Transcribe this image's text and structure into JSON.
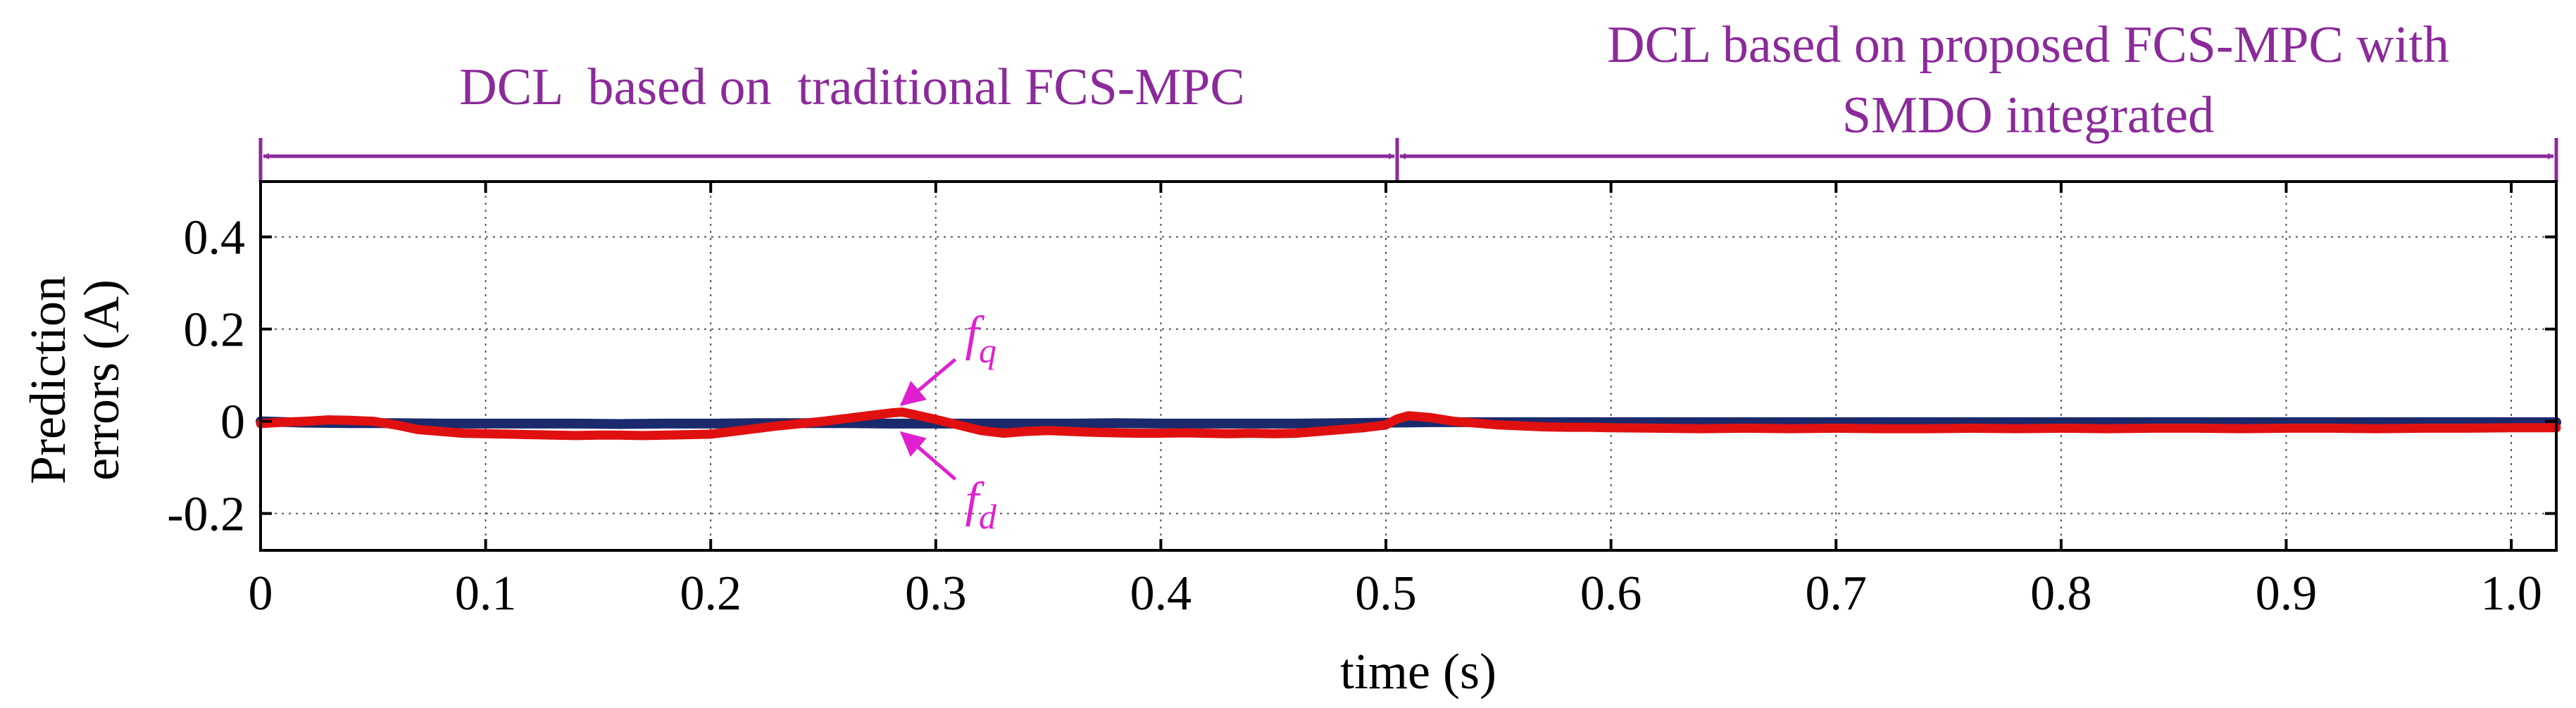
{
  "chart_data": {
    "type": "line",
    "xlabel": "time (s)",
    "ylabel_line1": "Prediction",
    "ylabel_line2": "errors (A)",
    "xlim": [
      0,
      1.02
    ],
    "ylim": [
      -0.28,
      0.52
    ],
    "x_ticks": [
      0,
      0.1,
      0.2,
      0.3,
      0.4,
      0.5,
      0.6,
      0.7,
      0.8,
      0.9,
      1.0
    ],
    "x_tick_labels": [
      "0",
      "0.1",
      "0.2",
      "0.3",
      "0.4",
      "0.5",
      "0.6",
      "0.7",
      "0.8",
      "0.9",
      "1.0"
    ],
    "y_ticks": [
      -0.2,
      0,
      0.2,
      0.4
    ],
    "y_tick_labels": [
      "-0.2",
      "0",
      "0.2",
      "0.4"
    ],
    "grid": true,
    "regions": [
      {
        "label": "DCL  based on  traditional FCS-MPC",
        "x_start": 0,
        "x_end": 0.505
      },
      {
        "label_line1": "DCL based on proposed FCS-MPC with",
        "label_line2": "SMDO integrated",
        "x_start": 0.505,
        "x_end": 1.02
      }
    ],
    "annotations": [
      {
        "symbol": "f",
        "subscript": "q",
        "x": 0.283,
        "y": 0.015
      },
      {
        "symbol": "f",
        "subscript": "d",
        "x": 0.283,
        "y": -0.01
      }
    ],
    "series": [
      {
        "name": "f_d",
        "color": "#1a2a6c",
        "x": [
          0,
          0.02,
          0.04,
          0.06,
          0.08,
          0.1,
          0.12,
          0.14,
          0.16,
          0.18,
          0.2,
          0.22,
          0.24,
          0.26,
          0.28,
          0.3,
          0.32,
          0.34,
          0.36,
          0.38,
          0.4,
          0.42,
          0.44,
          0.46,
          0.48,
          0.5,
          0.52,
          0.54,
          0.56,
          0.58,
          0.6,
          0.62,
          0.64,
          0.66,
          0.68,
          0.7,
          0.72,
          0.74,
          0.76,
          0.78,
          0.8,
          0.82,
          0.84,
          0.86,
          0.88,
          0.9,
          0.92,
          0.94,
          0.96,
          0.98,
          1.0,
          1.02
        ],
        "y": [
          0,
          -0.003,
          -0.004,
          -0.004,
          -0.005,
          -0.005,
          -0.005,
          -0.005,
          -0.006,
          -0.005,
          -0.005,
          -0.004,
          -0.004,
          -0.004,
          -0.005,
          -0.005,
          -0.005,
          -0.005,
          -0.005,
          -0.004,
          -0.005,
          -0.005,
          -0.005,
          -0.005,
          -0.004,
          -0.003,
          -0.002,
          -0.002,
          -0.002,
          -0.002,
          -0.002,
          -0.002,
          -0.002,
          -0.002,
          -0.002,
          -0.002,
          -0.002,
          -0.002,
          -0.002,
          -0.002,
          -0.002,
          -0.002,
          -0.002,
          -0.002,
          -0.002,
          -0.002,
          -0.002,
          -0.002,
          -0.002,
          -0.002,
          -0.002,
          -0.002
        ]
      },
      {
        "name": "f_q",
        "color": "#e01010",
        "x": [
          0,
          0.01,
          0.02,
          0.03,
          0.04,
          0.05,
          0.06,
          0.07,
          0.08,
          0.09,
          0.1,
          0.11,
          0.12,
          0.13,
          0.14,
          0.15,
          0.16,
          0.17,
          0.18,
          0.19,
          0.2,
          0.21,
          0.22,
          0.23,
          0.24,
          0.25,
          0.26,
          0.27,
          0.28,
          0.285,
          0.29,
          0.3,
          0.31,
          0.32,
          0.33,
          0.34,
          0.35,
          0.36,
          0.37,
          0.38,
          0.39,
          0.4,
          0.41,
          0.42,
          0.43,
          0.44,
          0.45,
          0.46,
          0.47,
          0.48,
          0.49,
          0.5,
          0.505,
          0.51,
          0.52,
          0.53,
          0.54,
          0.55,
          0.56,
          0.57,
          0.58,
          0.59,
          0.6,
          0.62,
          0.64,
          0.66,
          0.68,
          0.7,
          0.72,
          0.74,
          0.76,
          0.78,
          0.8,
          0.82,
          0.84,
          0.86,
          0.88,
          0.9,
          0.92,
          0.94,
          0.96,
          0.98,
          1.0,
          1.02
        ],
        "y": [
          -0.005,
          -0.002,
          0.0,
          0.003,
          0.002,
          0.0,
          -0.008,
          -0.018,
          -0.022,
          -0.026,
          -0.027,
          -0.028,
          -0.029,
          -0.03,
          -0.031,
          -0.03,
          -0.03,
          -0.031,
          -0.03,
          -0.029,
          -0.028,
          -0.022,
          -0.016,
          -0.01,
          -0.005,
          0.0,
          0.006,
          0.012,
          0.018,
          0.02,
          0.015,
          0.004,
          -0.008,
          -0.02,
          -0.026,
          -0.022,
          -0.02,
          -0.022,
          -0.024,
          -0.025,
          -0.026,
          -0.026,
          -0.025,
          -0.026,
          -0.027,
          -0.026,
          -0.027,
          -0.026,
          -0.022,
          -0.018,
          -0.014,
          -0.008,
          0.005,
          0.012,
          0.008,
          0.0,
          -0.004,
          -0.008,
          -0.01,
          -0.012,
          -0.013,
          -0.013,
          -0.014,
          -0.015,
          -0.016,
          -0.015,
          -0.016,
          -0.015,
          -0.016,
          -0.016,
          -0.015,
          -0.016,
          -0.015,
          -0.016,
          -0.015,
          -0.015,
          -0.016,
          -0.015,
          -0.015,
          -0.016,
          -0.015,
          -0.015,
          -0.014,
          -0.014
        ]
      }
    ]
  }
}
